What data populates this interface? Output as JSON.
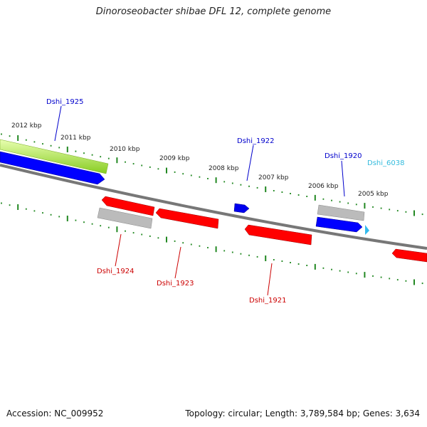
{
  "title": "Dinoroseobacter shibae DFL 12, complete genome",
  "accession": "Accession: NC_009952",
  "summary": "Topology: circular; Length: 3,789,584 bp; Genes: 3,634",
  "kbp_labels": [
    "2012 kbp",
    "2011 kbp",
    "2010 kbp",
    "2009 kbp",
    "2008 kbp",
    "2007 kbp",
    "2006 kbp",
    "2005 kbp"
  ],
  "genes": [
    {
      "name": "Dshi_1925",
      "color": "#0000cc"
    },
    {
      "name": "Dshi_1922",
      "color": "#0000cc"
    },
    {
      "name": "Dshi_1920",
      "color": "#0000cc"
    },
    {
      "name": "Dshi_6038",
      "color": "#33bbdd"
    },
    {
      "name": "Dshi_1924",
      "color": "#cc0000"
    },
    {
      "name": "Dshi_1923",
      "color": "#cc0000"
    },
    {
      "name": "Dshi_1921",
      "color": "#cc0000"
    }
  ],
  "colors": {
    "forward_gene": "#0000ff",
    "reverse_gene": "#ff0000",
    "rna_gene": "#aaaaaa",
    "highlight": "#99dd33",
    "backbone": "#777777",
    "ticks": "#228822"
  }
}
